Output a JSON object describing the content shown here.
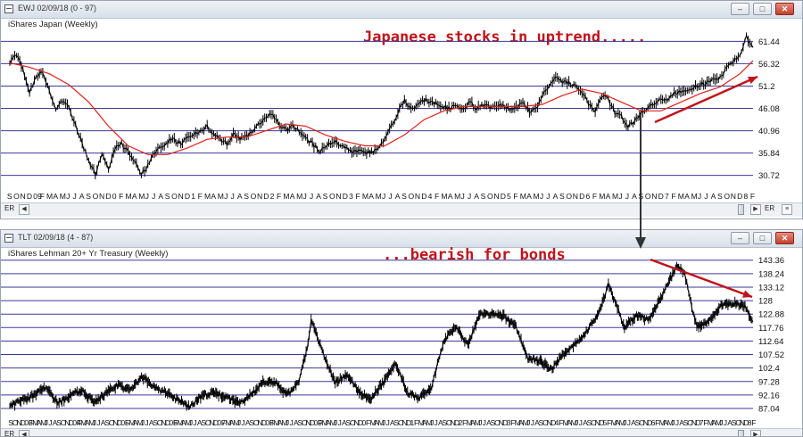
{
  "colors": {
    "price": "#000000",
    "ma": "#e0201a",
    "grid": "#3a3a9a",
    "annotation": "#c0141a",
    "arrow": "#c0141a",
    "connector": "#333333"
  },
  "month_letters": "JFMAMJJASOND",
  "top": {
    "window_title": "EWJ 02/09/18 (0 - 97)",
    "subtitle": "iShares Japan (Weekly)",
    "annotation": "Japanese stocks in uptrend.....",
    "scroll_tag_left": "ER",
    "scroll_tag_right": "ER"
  },
  "bottom": {
    "window_title": "TLT 02/09/18 (4 - 87)",
    "subtitle": "iShares Lehman 20+ Yr Treasury (Weekly)",
    "annotation": "...bearish for bonds",
    "scroll_tag_left": "ER"
  },
  "chart_data": [
    {
      "type": "line",
      "title": "iShares Japan (Weekly)",
      "x_start_month": "2008-09",
      "x_end_month": "2018-02",
      "year_labels": [
        "08",
        "09",
        "0",
        "1",
        "2",
        "3",
        "4",
        "5",
        "6",
        "7",
        "8"
      ],
      "ylim": [
        28,
        66
      ],
      "yticks": [
        30.72,
        35.84,
        40.96,
        46.08,
        51.2,
        56.32,
        61.44
      ],
      "series": [
        {
          "role": "price",
          "points": [
            [
              "2008-09",
              56.5
            ],
            [
              "2008-10",
              58.5
            ],
            [
              "2008-11",
              55
            ],
            [
              "2008-12",
              50
            ],
            [
              "2009-01",
              53
            ],
            [
              "2009-02",
              54.5
            ],
            [
              "2009-03",
              50
            ],
            [
              "2009-04",
              46
            ],
            [
              "2009-05",
              48
            ],
            [
              "2009-06",
              46
            ],
            [
              "2009-07",
              42
            ],
            [
              "2009-08",
              38
            ],
            [
              "2009-09",
              34
            ],
            [
              "2009-10",
              31
            ],
            [
              "2009-11",
              36
            ],
            [
              "2009-12",
              32
            ],
            [
              "2010-01",
              37
            ],
            [
              "2010-02",
              38
            ],
            [
              "2010-03",
              36
            ],
            [
              "2010-04",
              34
            ],
            [
              "2010-05",
              31
            ],
            [
              "2010-06",
              33
            ],
            [
              "2010-07",
              36
            ],
            [
              "2010-08",
              37
            ],
            [
              "2010-09",
              38.5
            ],
            [
              "2010-10",
              39
            ],
            [
              "2010-11",
              38
            ],
            [
              "2010-12",
              39.5
            ],
            [
              "2011-01",
              40
            ],
            [
              "2011-02",
              41
            ],
            [
              "2011-03",
              42
            ],
            [
              "2011-04",
              40
            ],
            [
              "2011-05",
              39
            ],
            [
              "2011-06",
              38
            ],
            [
              "2011-07",
              40
            ],
            [
              "2011-08",
              39
            ],
            [
              "2011-09",
              39.5
            ],
            [
              "2011-10",
              41
            ],
            [
              "2011-11",
              42.5
            ],
            [
              "2011-12",
              44
            ],
            [
              "2012-01",
              45
            ],
            [
              "2012-02",
              42
            ],
            [
              "2012-03",
              41
            ],
            [
              "2012-04",
              42
            ],
            [
              "2012-05",
              41
            ],
            [
              "2012-06",
              39
            ],
            [
              "2012-07",
              38
            ],
            [
              "2012-08",
              36.5
            ],
            [
              "2012-09",
              37
            ],
            [
              "2012-10",
              38.5
            ],
            [
              "2012-11",
              38
            ],
            [
              "2012-12",
              37
            ],
            [
              "2013-01",
              36
            ],
            [
              "2013-02",
              36.5
            ],
            [
              "2013-03",
              36
            ],
            [
              "2013-04",
              36
            ],
            [
              "2013-05",
              37
            ],
            [
              "2013-06",
              39
            ],
            [
              "2013-07",
              42
            ],
            [
              "2013-08",
              45
            ],
            [
              "2013-09",
              48
            ],
            [
              "2013-10",
              46
            ],
            [
              "2013-11",
              47
            ],
            [
              "2013-12",
              48
            ],
            [
              "2014-01",
              47.5
            ],
            [
              "2014-02",
              47
            ],
            [
              "2014-03",
              46.5
            ],
            [
              "2014-04",
              46
            ],
            [
              "2014-05",
              47
            ],
            [
              "2014-06",
              46
            ],
            [
              "2014-07",
              47.5
            ],
            [
              "2014-08",
              46
            ],
            [
              "2014-09",
              47
            ],
            [
              "2014-10",
              46.5
            ],
            [
              "2014-11",
              47
            ],
            [
              "2014-12",
              47
            ],
            [
              "2015-01",
              46
            ],
            [
              "2015-02",
              46.5
            ],
            [
              "2015-03",
              47
            ],
            [
              "2015-04",
              45.5
            ],
            [
              "2015-05",
              46
            ],
            [
              "2015-06",
              49
            ],
            [
              "2015-07",
              51.5
            ],
            [
              "2015-08",
              53.5
            ],
            [
              "2015-09",
              52
            ],
            [
              "2015-10",
              52
            ],
            [
              "2015-11",
              51
            ],
            [
              "2015-12",
              50
            ],
            [
              "2016-01",
              47
            ],
            [
              "2016-02",
              45
            ],
            [
              "2016-03",
              49
            ],
            [
              "2016-04",
              48
            ],
            [
              "2016-05",
              45
            ],
            [
              "2016-06",
              44
            ],
            [
              "2016-07",
              42
            ],
            [
              "2016-08",
              43
            ],
            [
              "2016-09",
              45
            ],
            [
              "2016-10",
              46.5
            ],
            [
              "2016-11",
              47
            ],
            [
              "2016-12",
              48.5
            ],
            [
              "2017-01",
              48
            ],
            [
              "2017-02",
              49.5
            ],
            [
              "2017-03",
              50
            ],
            [
              "2017-04",
              50.5
            ],
            [
              "2017-05",
              51
            ],
            [
              "2017-06",
              51.5
            ],
            [
              "2017-07",
              52
            ],
            [
              "2017-08",
              52.5
            ],
            [
              "2017-09",
              53
            ],
            [
              "2017-10",
              55.5
            ],
            [
              "2017-11",
              57
            ],
            [
              "2017-12",
              58.5
            ],
            [
              "2018-01",
              62.5
            ],
            [
              "2018-02",
              60
            ]
          ]
        },
        {
          "role": "moving-average",
          "points": [
            [
              "2008-09",
              56.5
            ],
            [
              "2008-12",
              55.5
            ],
            [
              "2009-03",
              54
            ],
            [
              "2009-06",
              51.5
            ],
            [
              "2009-09",
              47.5
            ],
            [
              "2009-12",
              42
            ],
            [
              "2010-03",
              37.5
            ],
            [
              "2010-06",
              35.5
            ],
            [
              "2010-09",
              35.5
            ],
            [
              "2010-12",
              37
            ],
            [
              "2011-03",
              39
            ],
            [
              "2011-06",
              39.5
            ],
            [
              "2011-09",
              39.5
            ],
            [
              "2011-12",
              41
            ],
            [
              "2012-03",
              42.5
            ],
            [
              "2012-06",
              42
            ],
            [
              "2012-09",
              40
            ],
            [
              "2012-12",
              38.5
            ],
            [
              "2013-03",
              37.5
            ],
            [
              "2013-06",
              37.5
            ],
            [
              "2013-09",
              40
            ],
            [
              "2013-12",
              43.5
            ],
            [
              "2014-03",
              45.5
            ],
            [
              "2014-06",
              46.5
            ],
            [
              "2014-09",
              46.5
            ],
            [
              "2014-12",
              46.5
            ],
            [
              "2015-03",
              46.5
            ],
            [
              "2015-06",
              47
            ],
            [
              "2015-09",
              49
            ],
            [
              "2015-12",
              50.5
            ],
            [
              "2016-03",
              49.5
            ],
            [
              "2016-06",
              47.5
            ],
            [
              "2016-09",
              45.5
            ],
            [
              "2016-12",
              45.5
            ],
            [
              "2017-03",
              47.5
            ],
            [
              "2017-06",
              49.5
            ],
            [
              "2017-09",
              51
            ],
            [
              "2017-12",
              54
            ],
            [
              "2018-02",
              57
            ]
          ]
        }
      ]
    },
    {
      "type": "line",
      "title": "iShares Lehman 20+ Yr Treasury (Weekly)",
      "x_start_month": "2002-09",
      "x_end_month": "2018-02",
      "year_labels": [
        "02",
        "03",
        "04",
        "05",
        "06",
        "07",
        "08",
        "09",
        "0",
        "1",
        "2",
        "3",
        "4",
        "5",
        "6",
        "7",
        "8"
      ],
      "ylim": [
        85,
        147
      ],
      "yticks": [
        87.04,
        92.16,
        97.28,
        102.4,
        107.52,
        112.64,
        117.76,
        122.88,
        128,
        133.12,
        138.24,
        143.36
      ],
      "series": [
        {
          "role": "price",
          "points": [
            [
              "2002-09",
              88
            ],
            [
              "2002-12",
              90
            ],
            [
              "2003-03",
              92
            ],
            [
              "2003-06",
              95
            ],
            [
              "2003-09",
              89
            ],
            [
              "2003-12",
              92
            ],
            [
              "2004-03",
              94
            ],
            [
              "2004-06",
              89
            ],
            [
              "2004-09",
              93
            ],
            [
              "2004-12",
              96
            ],
            [
              "2005-03",
              94
            ],
            [
              "2005-06",
              99
            ],
            [
              "2005-09",
              95
            ],
            [
              "2005-12",
              93
            ],
            [
              "2006-03",
              90
            ],
            [
              "2006-06",
              88
            ],
            [
              "2006-09",
              92
            ],
            [
              "2006-12",
              93
            ],
            [
              "2007-03",
              91
            ],
            [
              "2007-06",
              89
            ],
            [
              "2007-09",
              92
            ],
            [
              "2007-12",
              97
            ],
            [
              "2008-03",
              97
            ],
            [
              "2008-06",
              92
            ],
            [
              "2008-09",
              97
            ],
            [
              "2008-11",
              110
            ],
            [
              "2008-12",
              121
            ],
            [
              "2009-03",
              108
            ],
            [
              "2009-06",
              97
            ],
            [
              "2009-09",
              100
            ],
            [
              "2009-12",
              93
            ],
            [
              "2010-03",
              91
            ],
            [
              "2010-06",
              97
            ],
            [
              "2010-09",
              104
            ],
            [
              "2010-12",
              93
            ],
            [
              "2011-03",
              91
            ],
            [
              "2011-06",
              95
            ],
            [
              "2011-09",
              113
            ],
            [
              "2011-12",
              118
            ],
            [
              "2012-03",
              111
            ],
            [
              "2012-06",
              123
            ],
            [
              "2012-09",
              123
            ],
            [
              "2012-12",
              122
            ],
            [
              "2013-03",
              118
            ],
            [
              "2013-06",
              106
            ],
            [
              "2013-09",
              105
            ],
            [
              "2013-12",
              102
            ],
            [
              "2014-03",
              108
            ],
            [
              "2014-06",
              112
            ],
            [
              "2014-09",
              117
            ],
            [
              "2014-12",
              125
            ],
            [
              "2015-02",
              134
            ],
            [
              "2015-06",
              118
            ],
            [
              "2015-09",
              122
            ],
            [
              "2015-12",
              121
            ],
            [
              "2016-03",
              129
            ],
            [
              "2016-07",
              141
            ],
            [
              "2016-09",
              138
            ],
            [
              "2016-11",
              124
            ],
            [
              "2016-12",
              118
            ],
            [
              "2017-03",
              120
            ],
            [
              "2017-06",
              126
            ],
            [
              "2017-09",
              127
            ],
            [
              "2017-12",
              126
            ],
            [
              "2018-02",
              120
            ]
          ]
        }
      ]
    }
  ]
}
